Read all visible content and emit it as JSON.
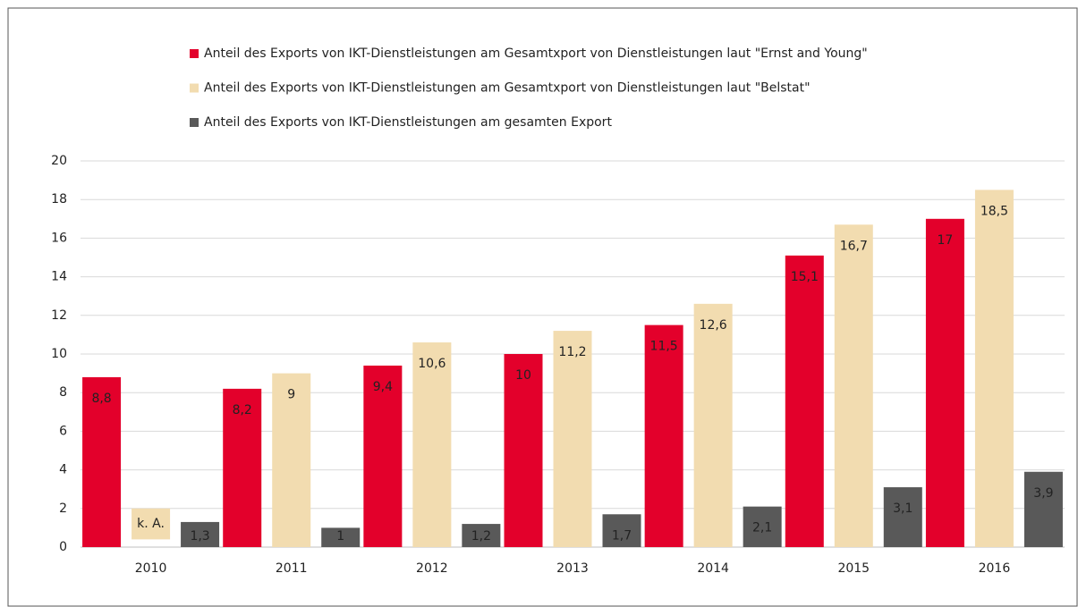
{
  "chart_data": {
    "type": "bar",
    "categories": [
      "2010",
      "2011",
      "2012",
      "2013",
      "2014",
      "2015",
      "2016"
    ],
    "series": [
      {
        "name": "Anteil des Exports von IKT-Dienstleistungen am Gesamtxport von Dienstleistungen laut \"Ernst and Young\"",
        "color": "#e3002b",
        "values": [
          8.8,
          8.2,
          9.4,
          10,
          11.5,
          15.1,
          17
        ],
        "value_labels": [
          "8,8",
          "8,2",
          "9,4",
          "10",
          "11,5",
          "15,1",
          "17"
        ]
      },
      {
        "name": "Anteil des Exports von IKT-Dienstleistungen am Gesamtxport von Dienstleistungen laut \"Belstat\"",
        "color": "#f2dcb0",
        "values": [
          null,
          9,
          10.6,
          11.2,
          12.6,
          16.7,
          18.5
        ],
        "value_labels": [
          "k. A.",
          "9",
          "10,6",
          "11,2",
          "12,6",
          "16,7",
          "18,5"
        ]
      },
      {
        "name": "Anteil des Exports von IKT-Dienstleistungen am gesamten Export",
        "color": "#595959",
        "values": [
          1.3,
          1,
          1.2,
          1.7,
          2.1,
          3.1,
          3.9
        ],
        "value_labels": [
          "1,3",
          "1",
          "1,2",
          "1,7",
          "2,1",
          "3,1",
          "3,9"
        ]
      }
    ],
    "ylim": [
      0,
      20
    ],
    "yticks": [
      0,
      2,
      4,
      6,
      8,
      10,
      12,
      14,
      16,
      18,
      20
    ],
    "grid": true,
    "legend": "top"
  }
}
